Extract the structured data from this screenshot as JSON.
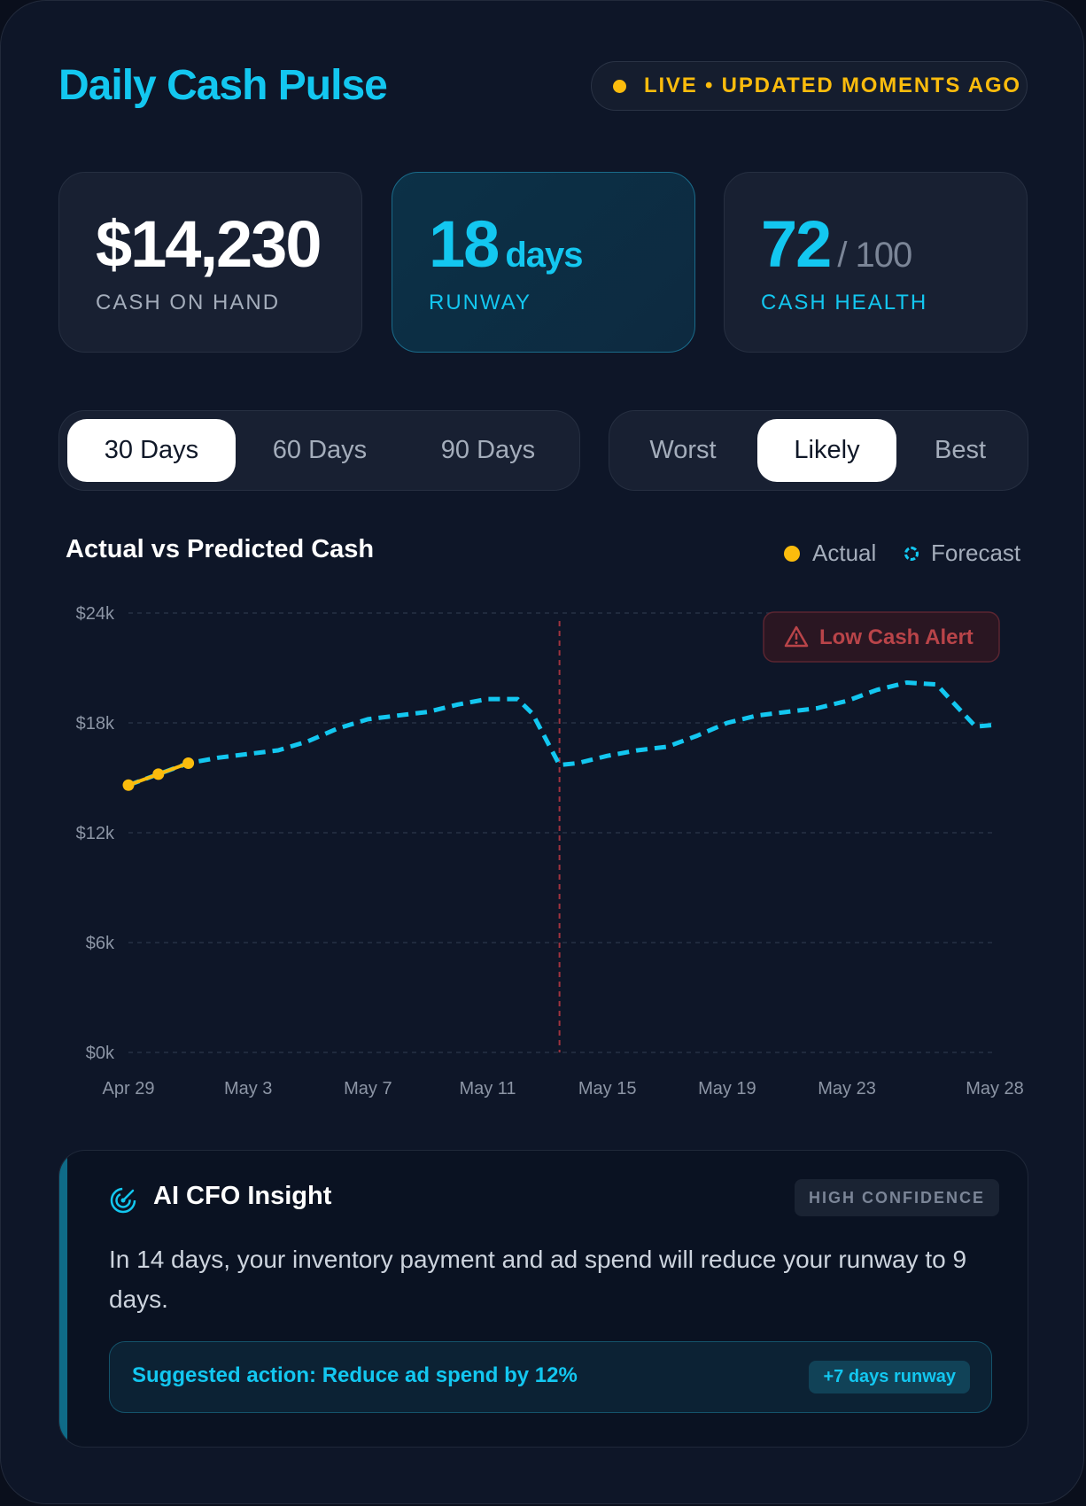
{
  "header": {
    "title": "Daily Cash Pulse",
    "live_status": "LIVE • UPDATED MOMENTS AGO"
  },
  "stats": [
    {
      "value": "$14,230",
      "unit": "",
      "label": "CASH ON HAND"
    },
    {
      "value": "18",
      "unit": "days",
      "label": "RUNWAY"
    },
    {
      "value": "72",
      "unit": "/ 100",
      "label": "CASH HEALTH"
    }
  ],
  "range_tabs": {
    "options": [
      "30 Days",
      "60 Days",
      "90 Days"
    ],
    "selected": "30 Days"
  },
  "scenario_tabs": {
    "options": [
      "Worst",
      "Likely",
      "Best"
    ],
    "selected": "Likely"
  },
  "chart": {
    "title": "Actual vs Predicted Cash",
    "legend": [
      {
        "label": "Actual",
        "color": "#fbbc0d"
      },
      {
        "label": "Forecast",
        "color": "#13c7f0"
      }
    ],
    "alert_label": "Low Cash Alert"
  },
  "chart_data": {
    "type": "line",
    "title": "Actual vs Predicted Cash",
    "ylim": [
      0,
      24000
    ],
    "yticks": [
      0,
      6000,
      12000,
      18000,
      24000
    ],
    "ytick_labels": [
      "$0k",
      "$6k",
      "$12k",
      "$18k",
      "$24k"
    ],
    "xtick_labels": [
      "Apr 29",
      "May 3",
      "May 7",
      "May 11",
      "May 15",
      "May 19",
      "May 23",
      "May 28"
    ],
    "xtick_days": [
      0,
      4,
      8,
      12,
      16,
      20,
      24,
      29
    ],
    "alert_day": 14.4,
    "series": [
      {
        "name": "Actual",
        "color": "#fbbc0d",
        "day": [
          0,
          1,
          2
        ],
        "values": [
          14600,
          15200,
          15800
        ]
      },
      {
        "name": "Forecast",
        "color": "#13c7f0",
        "day": [
          0,
          1,
          2,
          3,
          4,
          5,
          6,
          7,
          8,
          9,
          10,
          11,
          12,
          13,
          13.5,
          14.4,
          15,
          16,
          17,
          18,
          19,
          20,
          21,
          22,
          23,
          24,
          25,
          26,
          27,
          27.5,
          28.3,
          29
        ],
        "values": [
          14600,
          15200,
          15800,
          16100,
          16300,
          16500,
          17000,
          17700,
          18200,
          18400,
          18600,
          19000,
          19300,
          19300,
          18500,
          15700,
          15800,
          16200,
          16500,
          16700,
          17300,
          18000,
          18400,
          18600,
          18800,
          19200,
          19800,
          20200,
          20100,
          19200,
          17800,
          17900
        ]
      }
    ]
  },
  "insight": {
    "title": "AI CFO Insight",
    "badge": "HIGH CONFIDENCE",
    "body": "In 14 days, your inventory payment and ad spend will reduce your runway to 9 days.",
    "action": "Suggested action: Reduce ad spend by 12%",
    "action_pill": "+7 days runway"
  }
}
